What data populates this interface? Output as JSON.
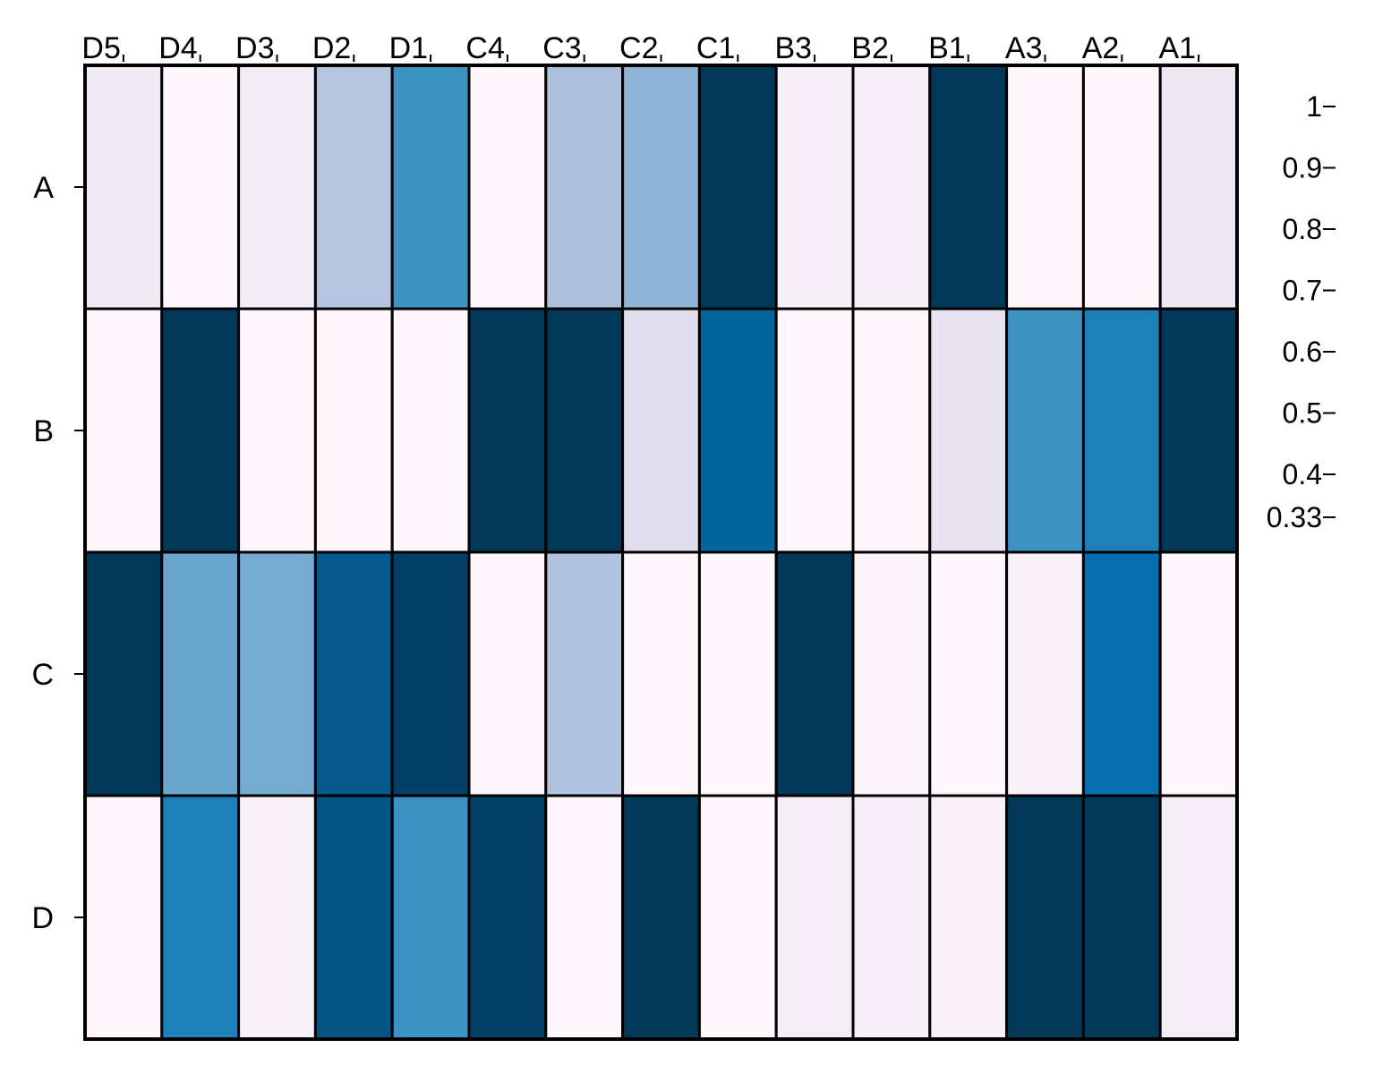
{
  "chart_data": {
    "type": "heatmap",
    "title": "",
    "xlabel": "",
    "ylabel": "",
    "columns": [
      "D5",
      "D4",
      "D3",
      "D2",
      "D1",
      "C4",
      "C3",
      "C2",
      "C1",
      "B3",
      "B2",
      "B1",
      "A3",
      "A2",
      "A1"
    ],
    "rows": [
      "A",
      "B",
      "C",
      "D"
    ],
    "values": [
      [
        0.4,
        0.33,
        0.39,
        0.55,
        0.74,
        0.33,
        0.57,
        0.62,
        1.0,
        0.37,
        0.37,
        1.0,
        0.33,
        0.33,
        0.41
      ],
      [
        0.33,
        1.0,
        0.33,
        0.33,
        0.33,
        1.0,
        1.0,
        0.45,
        0.88,
        0.33,
        0.33,
        0.43,
        0.74,
        0.79,
        1.0
      ],
      [
        1.0,
        0.68,
        0.66,
        0.92,
        0.98,
        0.34,
        0.56,
        0.33,
        0.33,
        1.0,
        0.35,
        0.33,
        0.36,
        0.84,
        0.33
      ],
      [
        0.33,
        0.79,
        0.36,
        0.93,
        0.74,
        0.98,
        0.33,
        1.0,
        0.33,
        0.38,
        0.37,
        0.36,
        1.0,
        1.0,
        0.38
      ]
    ],
    "colorbar": {
      "ticks": [
        1,
        0.9,
        0.8,
        0.7,
        0.6,
        0.5,
        0.4,
        0.33
      ],
      "tick_labels": [
        "1",
        "0.9",
        "0.8",
        "0.7",
        "0.6",
        "0.5",
        "0.4",
        "0.33"
      ],
      "range": [
        0.33,
        1
      ],
      "colormap_stops": [
        "#fff7fb",
        "#ece7f2",
        "#d0d1e6",
        "#a6bddb",
        "#74a9cf",
        "#3690c0",
        "#0570b0",
        "#045a8d",
        "#023858"
      ],
      "color_bar_drawn": false
    },
    "grid": true,
    "legend": "none"
  }
}
